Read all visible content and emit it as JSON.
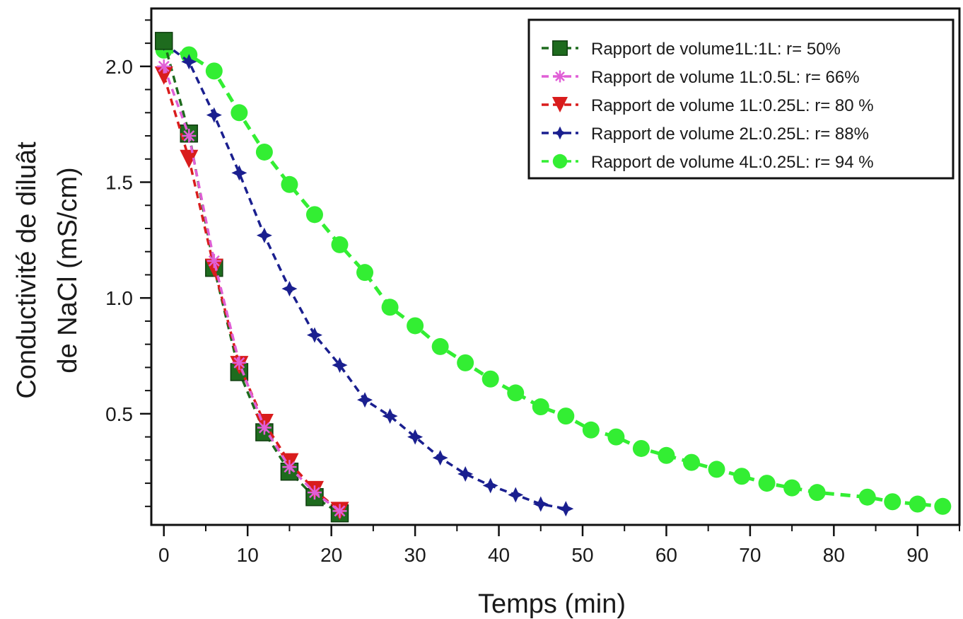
{
  "chart_data": {
    "type": "line",
    "title": "",
    "xlabel": "Temps (min)",
    "ylabel_lines": [
      "Conductivité de diluât",
      "de NaCl (mS/cm)"
    ],
    "xlim": [
      -1.5,
      95
    ],
    "ylim": [
      0.02,
      2.25
    ],
    "x_ticks": [
      0,
      10,
      20,
      30,
      40,
      50,
      60,
      70,
      80,
      90
    ],
    "y_ticks": [
      0.5,
      1.0,
      1.5,
      2.0
    ],
    "y_tick_labels": [
      "0.5",
      "1.0",
      "1.5",
      "2.0"
    ],
    "grid": false,
    "legend_position": "top-right",
    "series": [
      {
        "name": "Rapport de volume1L:1L: r= 50%",
        "color": "#1e6b1e",
        "marker": "square",
        "x": [
          0,
          3,
          6,
          9,
          12,
          15,
          18,
          21
        ],
        "y": [
          2.11,
          1.71,
          1.13,
          0.68,
          0.42,
          0.25,
          0.14,
          0.07
        ]
      },
      {
        "name": "Rapport de volume 1L:0.5L: r= 66%",
        "color": "#e05fd6",
        "marker": "asterisk",
        "x": [
          0,
          3,
          6,
          9,
          12,
          15,
          18,
          21
        ],
        "y": [
          2.0,
          1.7,
          1.16,
          0.72,
          0.44,
          0.27,
          0.16,
          0.08
        ]
      },
      {
        "name": "Rapport de volume 1L:0.25L: r= 80 %",
        "color": "#d91c1c",
        "marker": "triangle-down",
        "x": [
          0,
          3,
          6,
          9,
          12,
          15,
          18,
          21
        ],
        "y": [
          1.96,
          1.6,
          1.13,
          0.71,
          0.46,
          0.29,
          0.17,
          0.08
        ]
      },
      {
        "name": "Rapport de volume 2L:0.25L: r= 88%",
        "color": "#1a1f8f",
        "marker": "star4",
        "x": [
          0,
          3,
          6,
          9,
          12,
          15,
          18,
          21,
          24,
          27,
          30,
          33,
          36,
          39,
          42,
          45,
          48
        ],
        "y": [
          2.1,
          2.02,
          1.79,
          1.54,
          1.27,
          1.04,
          0.84,
          0.71,
          0.56,
          0.49,
          0.4,
          0.31,
          0.24,
          0.19,
          0.15,
          0.11,
          0.09
        ]
      },
      {
        "name": "Rapport de volume 4L:0.25L: r= 94 %",
        "color": "#33ee33",
        "marker": "circle",
        "x": [
          0,
          3,
          6,
          9,
          12,
          15,
          18,
          21,
          24,
          27,
          30,
          33,
          36,
          39,
          42,
          45,
          48,
          51,
          54,
          57,
          60,
          63,
          66,
          69,
          72,
          75,
          78,
          84,
          87,
          90,
          93
        ],
        "y": [
          2.07,
          2.05,
          1.98,
          1.8,
          1.63,
          1.49,
          1.36,
          1.23,
          1.11,
          0.96,
          0.88,
          0.79,
          0.72,
          0.65,
          0.59,
          0.53,
          0.49,
          0.43,
          0.4,
          0.35,
          0.32,
          0.29,
          0.26,
          0.23,
          0.2,
          0.18,
          0.16,
          0.14,
          0.12,
          0.11,
          0.1
        ]
      }
    ]
  }
}
